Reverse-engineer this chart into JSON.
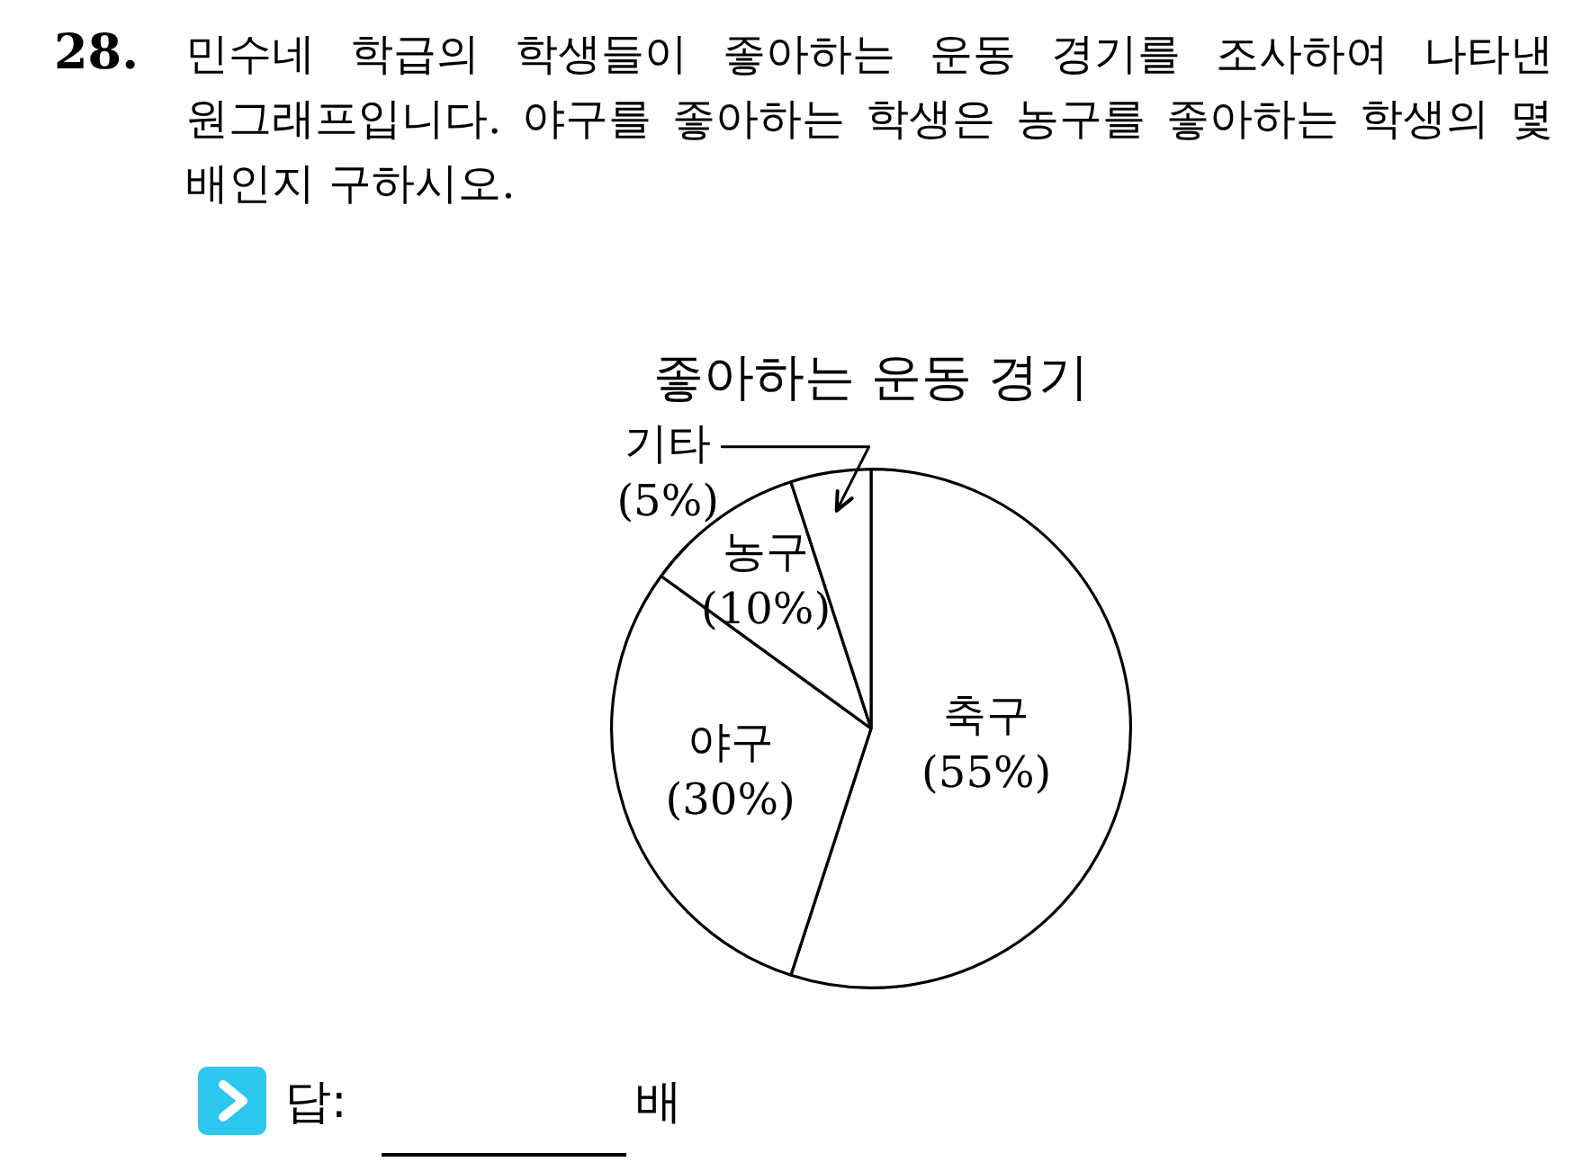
{
  "chart_data": {
    "type": "pie",
    "title": "좋아하는 운동 경기",
    "categories": [
      "축구",
      "야구",
      "농구",
      "기타"
    ],
    "values": [
      55,
      30,
      10,
      5
    ],
    "value_labels": [
      "(55%)",
      "(30%)",
      "(10%)",
      "(5%)"
    ],
    "colors": [
      "#ffffff",
      "#ffffff",
      "#ffffff",
      "#ffffff"
    ],
    "annotations": [
      "28.",
      "민수네 학급의 학생들이 좋아하는 운동 경기를 조사하여 나타낸 원그래프입니다. 야구를 좋아하는 학생은 농구를 좋아하는 학생의 몇 배인지 구하시오.",
      "답:",
      "배"
    ]
  }
}
